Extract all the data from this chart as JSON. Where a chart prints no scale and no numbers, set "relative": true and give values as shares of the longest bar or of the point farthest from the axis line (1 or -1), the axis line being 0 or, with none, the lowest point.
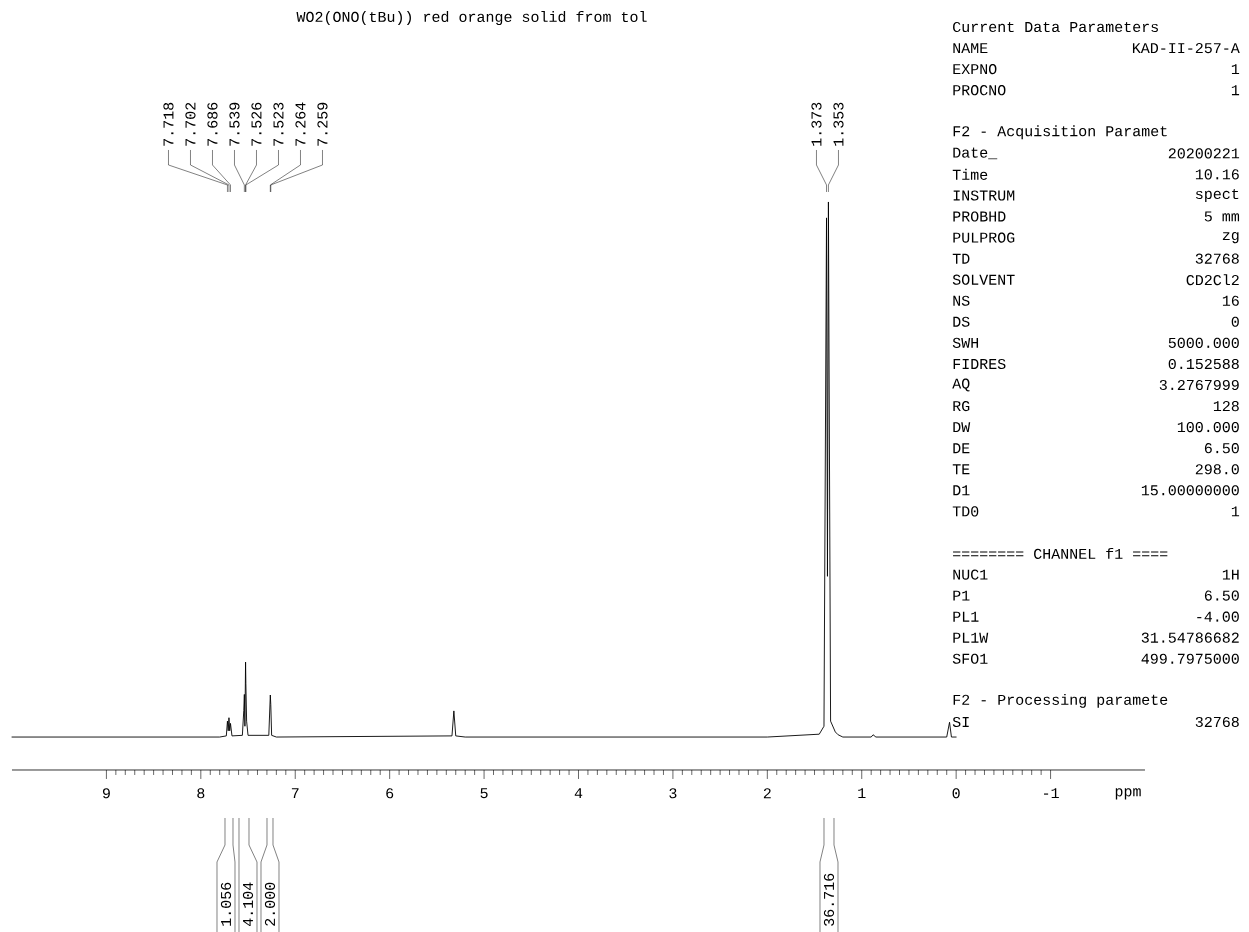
{
  "chart_data": {
    "type": "line",
    "title": "WO2(ONO(tBu)) red orange solid from tol",
    "xlabel": "ppm",
    "relative": true,
    "color": "#000000",
    "xlim": [
      10,
      -2
    ],
    "xticks": [
      9,
      8,
      7,
      6,
      5,
      4,
      3,
      2,
      1,
      0,
      -1
    ],
    "x": [
      10.0,
      7.8,
      7.73,
      7.718,
      7.71,
      7.702,
      7.694,
      7.686,
      7.67,
      7.56,
      7.545,
      7.539,
      7.533,
      7.526,
      7.523,
      7.515,
      7.5,
      7.28,
      7.264,
      7.259,
      7.25,
      7.2,
      5.34,
      5.32,
      5.3,
      5.2,
      2.0,
      1.45,
      1.4,
      1.373,
      1.363,
      1.353,
      1.33,
      1.28,
      1.25,
      1.2,
      0.9,
      0.88,
      0.85,
      0.1,
      0.07,
      0.05,
      0.0
    ],
    "values": [
      0.058,
      0.058,
      0.06,
      0.086,
      0.069,
      0.092,
      0.069,
      0.082,
      0.06,
      0.061,
      0.105,
      0.133,
      0.077,
      0.19,
      0.152,
      0.086,
      0.061,
      0.061,
      0.132,
      0.115,
      0.061,
      0.058,
      0.06,
      0.104,
      0.06,
      0.058,
      0.058,
      0.063,
      0.077,
      0.972,
      0.341,
      1.0,
      0.086,
      0.067,
      0.062,
      0.058,
      0.058,
      0.062,
      0.058,
      0.058,
      0.084,
      0.058,
      0.058
    ],
    "annotations": [
      "Current Data Parameters",
      "NAME",
      "KAD-II-257-A",
      "EXPNO",
      "1",
      "PROCNO",
      "1",
      "F2 - Acquisition Paramet",
      "Date_",
      "20200221",
      "Time",
      "10.16",
      "INSTRUM",
      "spect",
      "PROBHD",
      "5 mm",
      "PULPROG",
      "zg",
      "TD",
      "32768",
      "SOLVENT",
      "CD2Cl2",
      "NS",
      "16",
      "DS",
      "0",
      "SWH",
      "5000.000",
      "FIDRES",
      "0.152588",
      "AQ",
      "3.2767999",
      "RG",
      "128",
      "DW",
      "100.000",
      "DE",
      "6.50",
      "TE",
      "298.0",
      "D1",
      "15.00000000",
      "TD0",
      "1",
      "======== CHANNEL f1 ====",
      "NUC1",
      "1H",
      "P1",
      "6.50",
      "PL1",
      "-4.00",
      "PL1W",
      "31.54786682",
      "SFO1",
      "499.7975000",
      "F2 - Processing paramete",
      "SI",
      "32768",
      {
        "text": "7.718",
        "x": 7.718
      },
      {
        "text": "7.702",
        "x": 7.702
      },
      {
        "text": "7.686",
        "x": 7.686
      },
      {
        "text": "7.539",
        "x": 7.539
      },
      {
        "text": "7.526",
        "x": 7.526
      },
      {
        "text": "7.523",
        "x": 7.523
      },
      {
        "text": "7.264",
        "x": 7.264
      },
      {
        "text": "7.259",
        "x": 7.259
      },
      {
        "text": "1.373",
        "x": 1.373
      },
      {
        "text": "1.353",
        "x": 1.353
      },
      "1.056",
      "4.104",
      "2.000",
      "36.716"
    ]
  }
}
